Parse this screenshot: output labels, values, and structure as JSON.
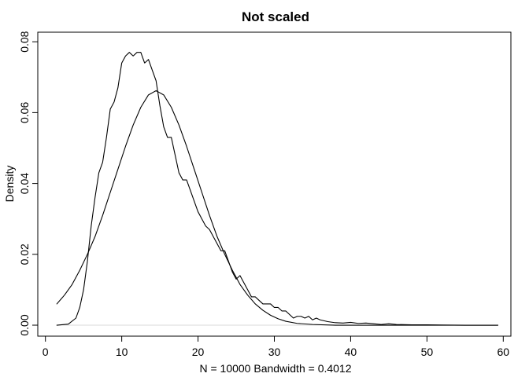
{
  "chart_data": {
    "type": "line",
    "title": "Not scaled",
    "xlabel": "N = 10000   Bandwidth = 0.4012",
    "ylabel": "Density",
    "xlim": [
      -1,
      61
    ],
    "ylim": [
      -0.0031,
      0.0827
    ],
    "x_ticks": [
      0,
      10,
      20,
      30,
      40,
      50,
      60
    ],
    "y_ticks": [
      0.0,
      0.02,
      0.04,
      0.06,
      0.08
    ],
    "x_tick_labels": [
      "0",
      "10",
      "20",
      "30",
      "40",
      "50",
      "60"
    ],
    "y_tick_labels": [
      "0.00",
      "0.02",
      "0.04",
      "0.06",
      "0.08"
    ],
    "grid": false,
    "line_color": "#000000",
    "series": [
      {
        "points": [
          [
            1.5,
            0.0
          ],
          [
            3.0,
            0.0003
          ],
          [
            4.0,
            0.002
          ],
          [
            4.5,
            0.005
          ],
          [
            5.0,
            0.01
          ],
          [
            5.5,
            0.018
          ],
          [
            6.0,
            0.028
          ],
          [
            6.5,
            0.036
          ],
          [
            7.0,
            0.043
          ],
          [
            7.5,
            0.046
          ],
          [
            8.0,
            0.053
          ],
          [
            8.5,
            0.061
          ],
          [
            9.0,
            0.063
          ],
          [
            9.5,
            0.067
          ],
          [
            10.0,
            0.074
          ],
          [
            10.5,
            0.076
          ],
          [
            11.0,
            0.077
          ],
          [
            11.5,
            0.076
          ],
          [
            12.0,
            0.077
          ],
          [
            12.5,
            0.077
          ],
          [
            13.0,
            0.074
          ],
          [
            13.5,
            0.075
          ],
          [
            14.0,
            0.072
          ],
          [
            14.5,
            0.069
          ],
          [
            15.0,
            0.062
          ],
          [
            15.5,
            0.056
          ],
          [
            16.0,
            0.053
          ],
          [
            16.5,
            0.053
          ],
          [
            17.0,
            0.048
          ],
          [
            17.5,
            0.043
          ],
          [
            18.0,
            0.041
          ],
          [
            18.5,
            0.041
          ],
          [
            19.0,
            0.038
          ],
          [
            19.5,
            0.035
          ],
          [
            20.0,
            0.032
          ],
          [
            20.5,
            0.03
          ],
          [
            21.0,
            0.028
          ],
          [
            21.5,
            0.027
          ],
          [
            22.0,
            0.025
          ],
          [
            22.5,
            0.023
          ],
          [
            23.0,
            0.021
          ],
          [
            23.5,
            0.021
          ],
          [
            24.0,
            0.018
          ],
          [
            24.5,
            0.015
          ],
          [
            25.0,
            0.013
          ],
          [
            25.5,
            0.014
          ],
          [
            26.0,
            0.012
          ],
          [
            26.5,
            0.01
          ],
          [
            27.0,
            0.008
          ],
          [
            27.5,
            0.008
          ],
          [
            28.0,
            0.007
          ],
          [
            28.5,
            0.006
          ],
          [
            29.0,
            0.006
          ],
          [
            29.5,
            0.006
          ],
          [
            30.0,
            0.005
          ],
          [
            30.5,
            0.005
          ],
          [
            31.0,
            0.004
          ],
          [
            31.5,
            0.004
          ],
          [
            32.0,
            0.003
          ],
          [
            32.5,
            0.002
          ],
          [
            33.0,
            0.0025
          ],
          [
            33.5,
            0.0025
          ],
          [
            34.0,
            0.002
          ],
          [
            34.5,
            0.0025
          ],
          [
            35.0,
            0.0015
          ],
          [
            35.5,
            0.002
          ],
          [
            36.0,
            0.0015
          ],
          [
            37.0,
            0.001
          ],
          [
            38.0,
            0.0007
          ],
          [
            39.0,
            0.0006
          ],
          [
            40.0,
            0.0008
          ],
          [
            41.0,
            0.0005
          ],
          [
            42.0,
            0.0006
          ],
          [
            43.0,
            0.0004
          ],
          [
            44.0,
            0.0002
          ],
          [
            45.0,
            0.0004
          ],
          [
            46.0,
            0.0002
          ],
          [
            48.0,
            0.0001
          ],
          [
            50.0,
            0.0001
          ],
          [
            52.0,
            5e-05
          ],
          [
            55.0,
            0.0
          ],
          [
            59.3,
            0.0
          ]
        ]
      },
      {
        "points": [
          [
            1.5,
            0.006
          ],
          [
            2.5,
            0.0085
          ],
          [
            3.5,
            0.0115
          ],
          [
            4.5,
            0.0155
          ],
          [
            5.5,
            0.02
          ],
          [
            6.5,
            0.025
          ],
          [
            7.5,
            0.031
          ],
          [
            8.5,
            0.0375
          ],
          [
            9.5,
            0.044
          ],
          [
            10.5,
            0.0505
          ],
          [
            11.5,
            0.0565
          ],
          [
            12.5,
            0.0615
          ],
          [
            13.5,
            0.065
          ],
          [
            14.5,
            0.0662
          ],
          [
            15.5,
            0.065
          ],
          [
            16.5,
            0.0615
          ],
          [
            17.5,
            0.0565
          ],
          [
            18.5,
            0.0505
          ],
          [
            19.5,
            0.044
          ],
          [
            20.5,
            0.0375
          ],
          [
            21.5,
            0.031
          ],
          [
            22.5,
            0.025
          ],
          [
            23.5,
            0.02
          ],
          [
            24.5,
            0.0155
          ],
          [
            25.5,
            0.0115
          ],
          [
            26.5,
            0.0085
          ],
          [
            27.5,
            0.006
          ],
          [
            28.5,
            0.0042
          ],
          [
            29.5,
            0.0028
          ],
          [
            30.5,
            0.0018
          ],
          [
            31.5,
            0.0011
          ],
          [
            33.0,
            0.0005
          ],
          [
            35.0,
            0.0002
          ],
          [
            38.0,
            0.0
          ],
          [
            45.0,
            0.0
          ],
          [
            59.3,
            0.0
          ]
        ]
      }
    ]
  }
}
